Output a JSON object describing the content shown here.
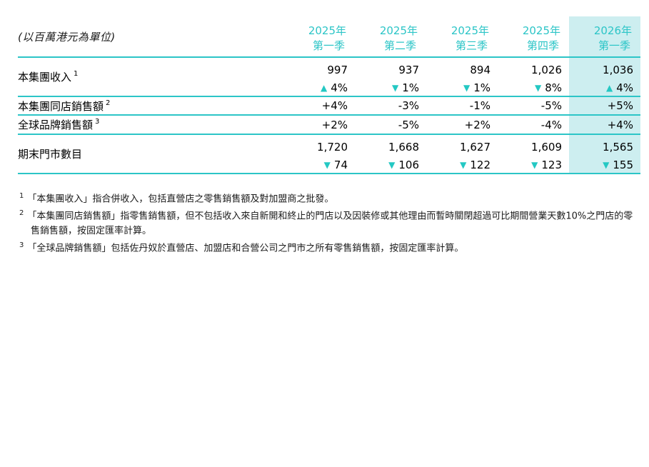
{
  "unit_label": "(以百萬港元為單位)",
  "colors": {
    "teal": "#2cc5c7",
    "highlight_bg": "#cdeef0"
  },
  "header": {
    "columns": [
      {
        "year": "2025年",
        "quarter": "第一季"
      },
      {
        "year": "2025年",
        "quarter": "第二季"
      },
      {
        "year": "2025年",
        "quarter": "第三季"
      },
      {
        "year": "2025年",
        "quarter": "第四季"
      },
      {
        "year": "2026年",
        "quarter": "第一季"
      }
    ]
  },
  "rows": {
    "revenue": {
      "label": "本集團收入",
      "footnote_ref": "1",
      "values": [
        "997",
        "937",
        "894",
        "1,026",
        "1,036"
      ],
      "changes": [
        {
          "icon": "▲",
          "value": "4%"
        },
        {
          "icon": "▼",
          "value": "1%"
        },
        {
          "icon": "▼",
          "value": "1%"
        },
        {
          "icon": "▼",
          "value": "8%"
        },
        {
          "icon": "▲",
          "value": "4%"
        }
      ]
    },
    "same_store_sales": {
      "label": "本集團同店銷售額",
      "footnote_ref": "2",
      "values": [
        "+4%",
        "-3%",
        "-1%",
        "-5%",
        "+5%"
      ]
    },
    "global_brand_sales": {
      "label": "全球品牌銷售額",
      "footnote_ref": "3",
      "values": [
        "+2%",
        "-5%",
        "+2%",
        "-4%",
        "+4%"
      ]
    },
    "store_count": {
      "label": "期末門市數目",
      "values": [
        "1,720",
        "1,668",
        "1,627",
        "1,609",
        "1,565"
      ],
      "changes": [
        {
          "icon": "▼",
          "value": "74"
        },
        {
          "icon": "▼",
          "value": "106"
        },
        {
          "icon": "▼",
          "value": "122"
        },
        {
          "icon": "▼",
          "value": "123"
        },
        {
          "icon": "▼",
          "value": "155"
        }
      ]
    }
  },
  "footnotes": [
    {
      "ref": "1",
      "text": "「本集團收入」指合併收入，包括直營店之零售銷售額及對加盟商之批發。"
    },
    {
      "ref": "2",
      "text": "「本集團同店銷售額」指零售銷售額，但不包括收入來自新開和終止的門店以及因裝修或其他理由而暫時關閉超過可比期間營業天數10%之門店的零售銷售額，按固定匯率計算。"
    },
    {
      "ref": "3",
      "text": "「全球品牌銷售額」包括佐丹奴於直營店、加盟店和合營公司之門市之所有零售銷售額，按固定匯率計算。"
    }
  ]
}
